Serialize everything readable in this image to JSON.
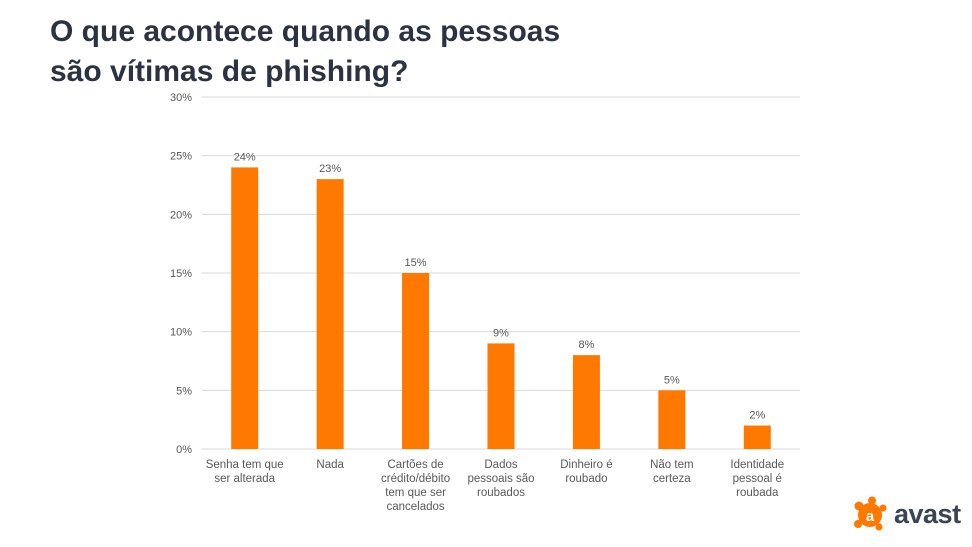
{
  "title_lines": [
    "O que acontece quando as pessoas",
    "são vítimas de phishing?"
  ],
  "brand": "avast",
  "colors": {
    "bar": "#ff7800",
    "title": "#2b3342",
    "axis_text": "#595959",
    "grid": "#d9d9d9",
    "brand_orange": "#ff7800",
    "brand_text": "#3a4454"
  },
  "logo_icon": "avast-logo-icon",
  "chart_data": {
    "type": "bar",
    "categories": [
      [
        "Senha tem que",
        "ser alterada"
      ],
      [
        "Nada"
      ],
      [
        "Cartões de",
        "crédito/débito",
        "tem que ser",
        "cancelados"
      ],
      [
        "Dados",
        "pessoais são",
        "roubados"
      ],
      [
        "Dinheiro é",
        "roubado"
      ],
      [
        "Não tem",
        "certeza"
      ],
      [
        "Identidade",
        "pessoal é",
        "roubada"
      ]
    ],
    "values": [
      24,
      23,
      15,
      9,
      8,
      5,
      2
    ],
    "data_labels": [
      "24%",
      "23%",
      "15%",
      "9%",
      "8%",
      "5%",
      "2%"
    ],
    "ylim": [
      0,
      30
    ],
    "yticks": [
      0,
      5,
      10,
      15,
      20,
      25,
      30
    ],
    "ytick_labels": [
      "0%",
      "5%",
      "10%",
      "15%",
      "20%",
      "25%",
      "30%"
    ],
    "grid": true,
    "legend": false,
    "xlabel": "",
    "ylabel": ""
  }
}
